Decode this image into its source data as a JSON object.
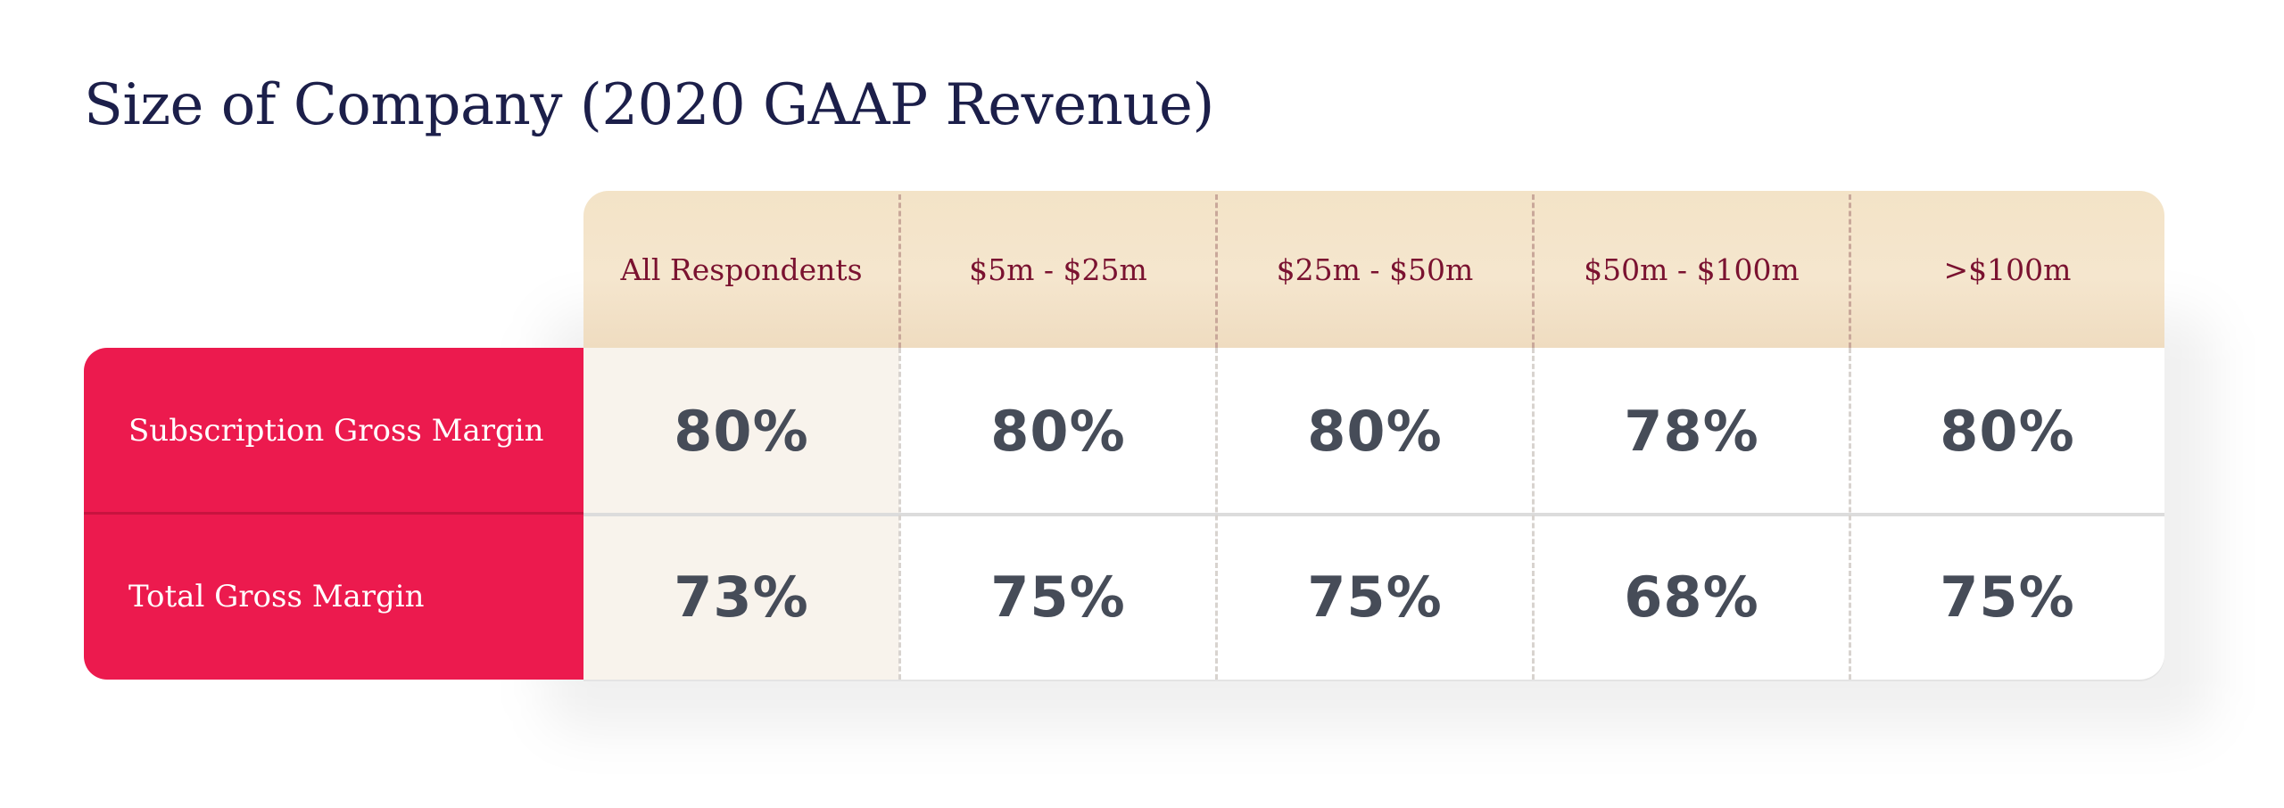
{
  "title": "Size of Company (2020 GAAP Revenue)",
  "chart_data": {
    "type": "table",
    "title": "Size of Company (2020 GAAP Revenue)",
    "columns": [
      "All Respondents",
      "$5m - $25m",
      "$25m - $50m",
      "$50m - $100m",
      ">$100m"
    ],
    "rows": [
      {
        "label": "Subscription Gross Margin",
        "values": [
          "80%",
          "80%",
          "80%",
          "78%",
          "80%"
        ]
      },
      {
        "label": "Total Gross Margin",
        "values": [
          "73%",
          "75%",
          "75%",
          "68%",
          "75%"
        ]
      }
    ]
  },
  "colors": {
    "title": "#1c1f4a",
    "row_label_bg": "#ec1a4e",
    "header_bg": "#f4e4ca",
    "header_text": "#7a1230",
    "value_text": "#464c58",
    "first_col_bg": "#f8f3ec"
  }
}
